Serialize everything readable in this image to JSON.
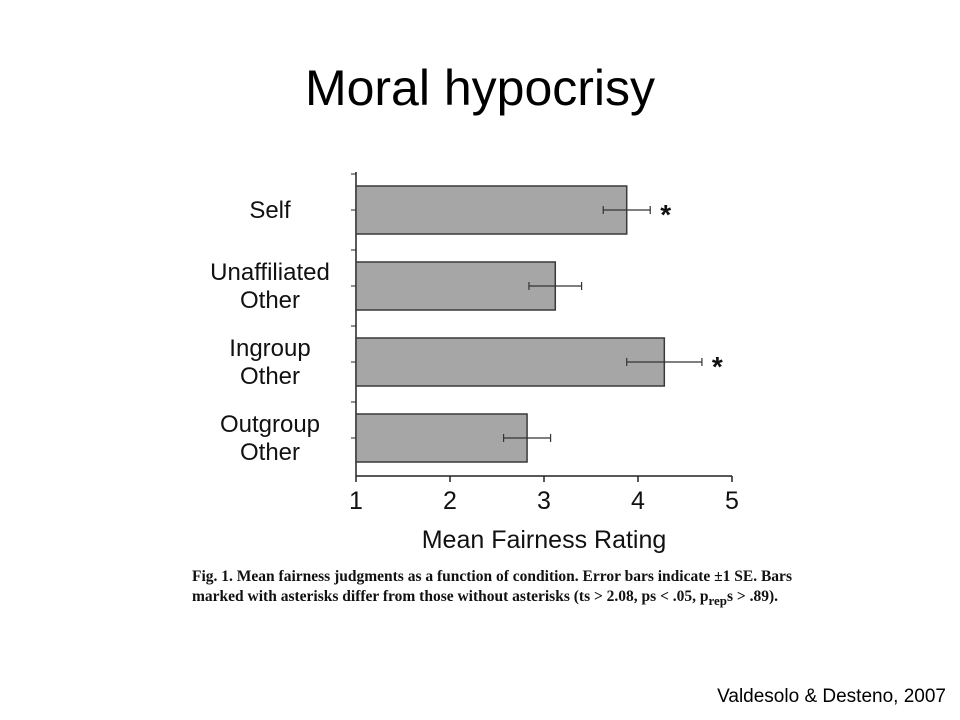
{
  "slide": {
    "title": "Moral hypocrisy",
    "citation": "Valdesolo & Desteno, 2007"
  },
  "caption": {
    "label": "Fig. 1.",
    "text": "Mean fairness judgments as a function of condition. Error bars indicate ±1 SE. Bars marked with asterisks differ from those without asterisks (ts > 2.08, ps < .05, p",
    "subscript": "rep",
    "tail": "s > .89)."
  },
  "chart_data": {
    "type": "bar",
    "orientation": "horizontal",
    "categories": [
      [
        "Self"
      ],
      [
        "Unaffiliated",
        "Other"
      ],
      [
        "Ingroup",
        "Other"
      ],
      [
        "Outgroup",
        "Other"
      ]
    ],
    "values": [
      3.88,
      3.12,
      4.28,
      2.82
    ],
    "error": [
      0.25,
      0.28,
      0.4,
      0.25
    ],
    "significant": [
      true,
      false,
      true,
      false
    ],
    "significance_marker": "*",
    "xlabel": "Mean Fairness Rating",
    "xlim": [
      1,
      5
    ],
    "xticks": [
      1,
      2,
      3,
      4,
      5
    ],
    "bar_color": "#a6a6a6",
    "bar_edge_color": "#3a3a3a",
    "grid": false
  }
}
